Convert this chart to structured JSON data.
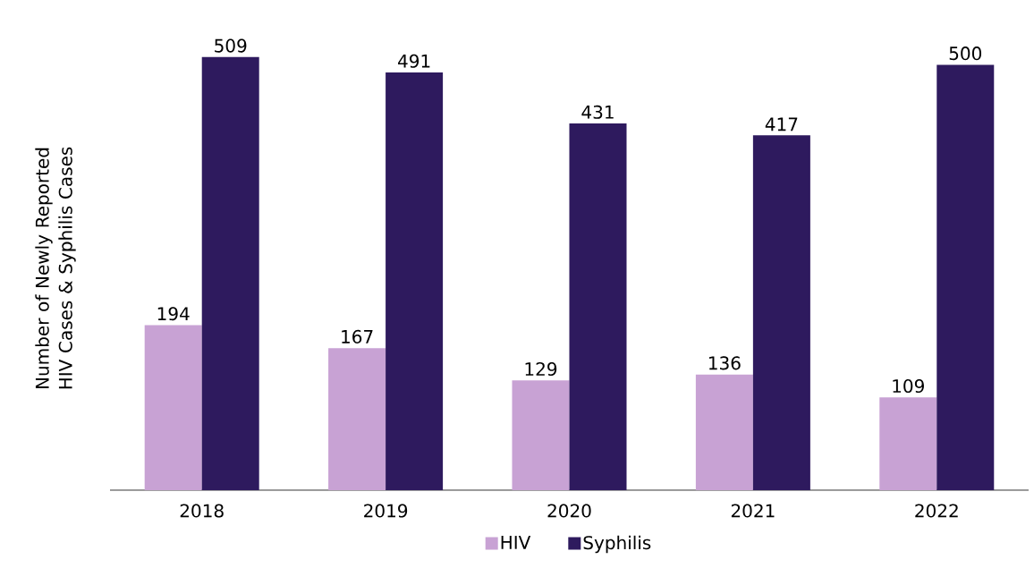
{
  "chart_data": {
    "type": "bar",
    "ylabel": "Number of Newly Reported HIV Cases & Syphilis Cases",
    "categories": [
      "2018",
      "2019",
      "2020",
      "2021",
      "2022"
    ],
    "series": [
      {
        "name": "HIV",
        "color": "#c8a2d4",
        "values": [
          194,
          167,
          129,
          136,
          109
        ]
      },
      {
        "name": "Syphilis",
        "color": "#2e1a5e",
        "values": [
          509,
          491,
          431,
          417,
          500
        ]
      }
    ],
    "data_labels": true,
    "legend": "bottom"
  }
}
